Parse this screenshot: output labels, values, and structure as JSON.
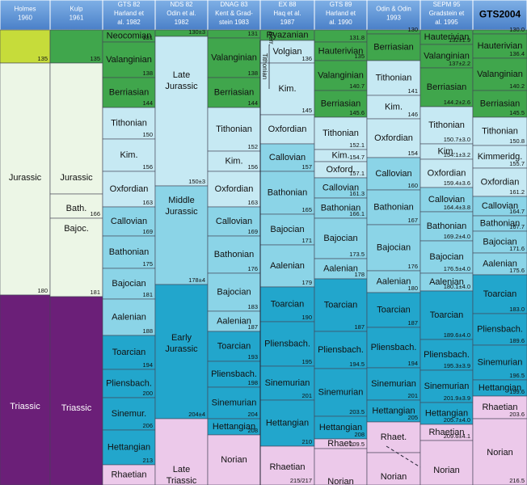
{
  "columns": [
    {
      "header": [
        "Holmes",
        "1960"
      ],
      "cells": [
        {
          "age": "135",
          "color": "#c6dc3a"
        },
        {
          "label": "Jurassic",
          "age": "180",
          "color": "#ecf6e6"
        },
        {
          "label": "Triassic",
          "color": "#6b1f78"
        }
      ]
    },
    {
      "header": [
        "Kulp",
        "1961"
      ],
      "cells": [
        {
          "age": "135",
          "color": "#40a64c"
        },
        {
          "label": "Jurassic",
          "color": "#ecf6e6"
        },
        {
          "label": "Bath.",
          "age": "166",
          "color": "#ecf6e6"
        },
        {
          "label": "Bajoc.",
          "age": "181",
          "color": "#ecf6e6"
        },
        {
          "label": "Triassic",
          "color": "#6b1f78"
        }
      ]
    },
    {
      "header": [
        "GTS 82",
        "Harland et",
        "al. 1982"
      ],
      "cells": [
        {
          "label": "Neocomian",
          "age": "131",
          "color": "#40a64c"
        },
        {
          "label": "Valanginian",
          "age": "138",
          "color": "#40a64c"
        },
        {
          "label": "Berriasian",
          "age": "144",
          "color": "#40a64c"
        },
        {
          "label": "Tithonian",
          "age": "150",
          "color": "#c6e9f3"
        },
        {
          "label": "Kim.",
          "age": "156",
          "color": "#c6e9f3"
        },
        {
          "label": "Oxfordian",
          "age": "163",
          "color": "#c6e9f3"
        },
        {
          "label": "Callovian",
          "age": "169",
          "color": "#8bd4e7"
        },
        {
          "label": "Bathonian",
          "age": "175",
          "color": "#8bd4e7"
        },
        {
          "label": "Bajocian",
          "age": "181",
          "color": "#8bd4e7"
        },
        {
          "label": "Aalenian",
          "age": "188",
          "color": "#8bd4e7"
        },
        {
          "label": "Toarcian",
          "age": "194",
          "color": "#22a6cc"
        },
        {
          "label": "Pliensbach.",
          "age": "200",
          "color": "#22a6cc"
        },
        {
          "label": "Sinemur.",
          "age": "206",
          "color": "#22a6cc"
        },
        {
          "label": "Hettangian",
          "age": "213",
          "color": "#22a6cc"
        },
        {
          "label": "Rhaetian",
          "color": "#ecc9ea"
        }
      ]
    },
    {
      "header": [
        "NDS 82",
        "Odin et al.",
        "1982"
      ],
      "cells": [
        {
          "age": "130±3",
          "color": "#40a64c"
        },
        {
          "label": "Late Jurassic",
          "age": "150±3",
          "color": "#c6e9f3"
        },
        {
          "label": "Middle Jurassic",
          "age": "178±4",
          "color": "#8bd4e7"
        },
        {
          "label": "Early Jurassic",
          "age": "204±4",
          "color": "#22a6cc"
        },
        {
          "label": "Late Triassic",
          "color": "#ecc9ea"
        }
      ]
    },
    {
      "header": [
        "DNAG 83",
        "Kent & Grad-",
        "stein 1983"
      ],
      "cells": [
        {
          "age": "131",
          "color": "#40a64c"
        },
        {
          "label": "Valanginian",
          "age": "138",
          "color": "#40a64c"
        },
        {
          "label": "Berriasian",
          "age": "144",
          "color": "#40a64c"
        },
        {
          "label": "Tithonian",
          "age": "152",
          "color": "#c6e9f3"
        },
        {
          "label": "Kim.",
          "age": "156",
          "color": "#c6e9f3"
        },
        {
          "label": "Oxfordian",
          "age": "163",
          "color": "#c6e9f3"
        },
        {
          "label": "Callovian",
          "age": "169",
          "color": "#8bd4e7"
        },
        {
          "label": "Bathonian",
          "age": "176",
          "color": "#8bd4e7"
        },
        {
          "label": "Bajocian",
          "age": "183",
          "color": "#8bd4e7"
        },
        {
          "label": "Aalenian",
          "age": "187",
          "color": "#8bd4e7"
        },
        {
          "label": "Toarcian",
          "age": "193",
          "color": "#22a6cc"
        },
        {
          "label": "Pliensbach.",
          "age": "198",
          "color": "#22a6cc"
        },
        {
          "label": "Sinemurian",
          "age": "204",
          "color": "#22a6cc"
        },
        {
          "label": "Hettangian",
          "age": "208",
          "color": "#22a6cc"
        },
        {
          "label": "Norian",
          "color": "#ecc9ea"
        }
      ]
    },
    {
      "header": [
        "EX 88",
        "Haq et al.",
        "1987"
      ],
      "side_labels": [
        "Tithonian",
        "Berr."
      ],
      "cells": [
        {
          "label": "Ryazanian",
          "color": "#40a64c"
        },
        {
          "label": "Volgian",
          "age": "136",
          "color": "#c6e9f3"
        },
        {
          "label": "Kim.",
          "age": "145",
          "color": "#c6e9f3"
        },
        {
          "label": "Oxfordian",
          "color": "#c6e9f3"
        },
        {
          "label": "Callovian",
          "age": "157",
          "color": "#8bd4e7"
        },
        {
          "label": "Bathonian",
          "age": "165",
          "color": "#8bd4e7"
        },
        {
          "label": "Bajocian",
          "age": "171",
          "color": "#8bd4e7"
        },
        {
          "label": "Aalenian",
          "age": "179",
          "color": "#8bd4e7"
        },
        {
          "label": "Toarcian",
          "age": "190",
          "color": "#22a6cc"
        },
        {
          "label": "Pliensbach.",
          "age": "195",
          "color": "#22a6cc"
        },
        {
          "label": "Sinemurian",
          "age": "201",
          "color": "#22a6cc"
        },
        {
          "label": "Hettangian",
          "age": "210",
          "color": "#22a6cc"
        },
        {
          "label": "Rhaetian",
          "age": "215/217",
          "color": "#ecc9ea"
        }
      ]
    },
    {
      "header": [
        "GTS 89",
        "Harland et",
        "al. 1990"
      ],
      "cells": [
        {
          "age": "131.8",
          "color": "#40a64c"
        },
        {
          "label": "Hauterivian",
          "age": "135",
          "color": "#40a64c"
        },
        {
          "label": "Valanginian",
          "age": "140.7",
          "color": "#40a64c"
        },
        {
          "label": "Berriasian",
          "age": "145.6",
          "color": "#40a64c"
        },
        {
          "label": "Tithonian",
          "age": "152.1",
          "color": "#c6e9f3"
        },
        {
          "label": "Kim.",
          "age": "154.7",
          "color": "#c6e9f3"
        },
        {
          "label": "Oxford.",
          "age": "157.1",
          "color": "#c6e9f3"
        },
        {
          "label": "Callovian",
          "age": "161.3",
          "color": "#8bd4e7"
        },
        {
          "label": "Bathonian",
          "age": "166.1",
          "color": "#8bd4e7"
        },
        {
          "label": "Bajocian",
          "age": "173.5",
          "color": "#8bd4e7"
        },
        {
          "label": "Aalenian",
          "age": "178",
          "color": "#8bd4e7"
        },
        {
          "label": "Toarcian",
          "age": "187",
          "color": "#22a6cc"
        },
        {
          "label": "Pliensbach.",
          "age": "194.5",
          "color": "#22a6cc"
        },
        {
          "label": "Sinemurian",
          "age": "203.5",
          "color": "#22a6cc"
        },
        {
          "label": "Hettangian",
          "age": "208",
          "color": "#22a6cc"
        },
        {
          "label": "Rhaet.",
          "age": "209.5",
          "color": "#ecc9ea"
        },
        {
          "label": "Norian",
          "color": "#ecc9ea"
        }
      ]
    },
    {
      "header": [
        "Odin & Odin",
        "1993"
      ],
      "cells": [
        {
          "age": "130",
          "color": "#40a64c"
        },
        {
          "label": "Berriasian",
          "color": "#40a64c"
        },
        {
          "label": "Tithonian",
          "age": "141",
          "color": "#c6e9f3"
        },
        {
          "label": "Kim.",
          "age": "146",
          "color": "#c6e9f3"
        },
        {
          "label": "Oxfordian",
          "age": "154",
          "color": "#c6e9f3"
        },
        {
          "label": "Callovian",
          "age": "160",
          "color": "#8bd4e7"
        },
        {
          "label": "Bathonian",
          "age": "167",
          "color": "#8bd4e7"
        },
        {
          "label": "Bajocian",
          "age": "176",
          "color": "#8bd4e7"
        },
        {
          "label": "Aalenian",
          "age": "180",
          "color": "#8bd4e7"
        },
        {
          "label": "Toarcian",
          "age": "187",
          "color": "#22a6cc"
        },
        {
          "label": "Pliensbach.",
          "age": "194",
          "color": "#22a6cc"
        },
        {
          "label": "Sinemurian",
          "age": "201",
          "color": "#22a6cc"
        },
        {
          "label": "Hettangian",
          "age": "205",
          "color": "#22a6cc"
        },
        {
          "label": "Rhaet.",
          "color": "#ecc9ea"
        },
        {
          "label": "Norian",
          "color": "#ecc9ea"
        }
      ]
    },
    {
      "header": [
        "SEPM 95",
        "Gradstein et",
        "al. 1995"
      ],
      "cells": [
        {
          "label": "Hauterivian",
          "age": "132±1.9",
          "color": "#40a64c"
        },
        {
          "label": "Valanginian",
          "age": "137±2.2",
          "color": "#40a64c"
        },
        {
          "label": "Berriasian",
          "age": "144.2±2.6",
          "color": "#40a64c"
        },
        {
          "label": "Tithonian",
          "age": "150.7±3.0",
          "color": "#c6e9f3"
        },
        {
          "label": "Kim.",
          "age": "154.1±3.2",
          "color": "#c6e9f3"
        },
        {
          "label": "Oxfordian",
          "age": "159.4±3.6",
          "color": "#c6e9f3"
        },
        {
          "label": "Callovian",
          "age": "164.4±3.8",
          "color": "#8bd4e7"
        },
        {
          "label": "Bathonian",
          "age": "169.2±4.0",
          "color": "#8bd4e7"
        },
        {
          "label": "Bajocian",
          "age": "176.5±4.0",
          "color": "#8bd4e7"
        },
        {
          "label": "Aalenian",
          "age": "180.1±4.0",
          "color": "#8bd4e7"
        },
        {
          "label": "Toarcian",
          "age": "189.6±4.0",
          "color": "#22a6cc"
        },
        {
          "label": "Pliensbach.",
          "age": "195.3±3.9",
          "color": "#22a6cc"
        },
        {
          "label": "Sinemurian",
          "age": "201.9±3.9",
          "color": "#22a6cc"
        },
        {
          "label": "Hettangian",
          "age": "205.7±4.0",
          "color": "#22a6cc"
        },
        {
          "label": "Rhaetian",
          "age": "209.6±4.1",
          "color": "#ecc9ea"
        },
        {
          "label": "Norian",
          "color": "#ecc9ea"
        }
      ]
    },
    {
      "header": [
        "GTS2004"
      ],
      "cells": [
        {
          "age": "130.0",
          "color": "#40a64c"
        },
        {
          "label": "Hauterivian",
          "age": "136.4",
          "color": "#40a64c"
        },
        {
          "label": "Valanginian",
          "age": "140.2",
          "color": "#40a64c"
        },
        {
          "label": "Berriasian",
          "age": "145.5",
          "color": "#40a64c"
        },
        {
          "label": "Tithonian",
          "age": "150.8",
          "color": "#c6e9f3"
        },
        {
          "label": "Kimmeridg.",
          "age": "155.7",
          "color": "#c6e9f3"
        },
        {
          "label": "Oxfordian",
          "age": "161.2",
          "color": "#c6e9f3"
        },
        {
          "label": "Callovian",
          "age": "164.7",
          "color": "#8bd4e7"
        },
        {
          "label": "Bathonian",
          "age": "167.7",
          "color": "#8bd4e7"
        },
        {
          "label": "Bajocian",
          "age": "171.6",
          "color": "#8bd4e7"
        },
        {
          "label": "Aalenian",
          "age": "175.6",
          "color": "#8bd4e7"
        },
        {
          "label": "Toarcian",
          "age": "183.0",
          "color": "#22a6cc"
        },
        {
          "label": "Pliensbach.",
          "age": "189.6",
          "color": "#22a6cc"
        },
        {
          "label": "Sinemurian",
          "age": "196.5",
          "color": "#22a6cc"
        },
        {
          "label": "Hettangian",
          "age": "199.6",
          "color": "#22a6cc"
        },
        {
          "label": "Rhaetian",
          "age": "203.6",
          "color": "#ecc9ea"
        },
        {
          "label": "Norian",
          "age": "216.5",
          "color": "#ecc9ea"
        }
      ]
    }
  ]
}
